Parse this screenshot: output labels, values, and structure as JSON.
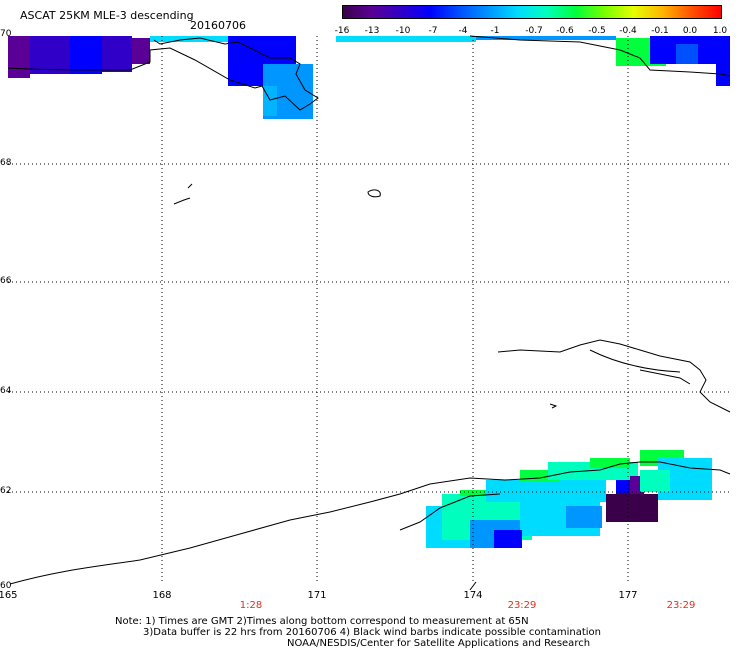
{
  "title": "ASCAT 25KM MLE-3 descending",
  "date": "20160706",
  "colorbar": {
    "labels": [
      "-16",
      "-13",
      "-10",
      "-7",
      "-4",
      "-1",
      "-0.7",
      "-0.6",
      "-0.5",
      "-0.4",
      "-0.1",
      "0.0",
      "1.0"
    ],
    "colors": [
      "#3a004a",
      "#5a0096",
      "#3000c8",
      "#0000ff",
      "#0050ff",
      "#0096ff",
      "#00dcff",
      "#00ffbe",
      "#00ff3c",
      "#78ff00",
      "#e6ff00",
      "#ffb400",
      "#ff5000",
      "#ff0000"
    ]
  },
  "latitudes": [
    "70",
    "68",
    "66",
    "64",
    "62",
    "60"
  ],
  "longitudes": [
    "165",
    "168",
    "171",
    "174",
    "177"
  ],
  "times": [
    "1:28",
    "23:29",
    "23:29"
  ],
  "notes": [
    "Note: 1) Times are GMT 2)Times along bottom correspond to measurement at 65N",
    "3)Data buffer is 22 hrs from 20160706 4) Black wind barbs indicate possible contamination",
    "NOAA/NESDIS/Center for Satellite Applications and Research"
  ],
  "colors": {
    "time_label": "#e0301e",
    "grid": "#000000"
  }
}
